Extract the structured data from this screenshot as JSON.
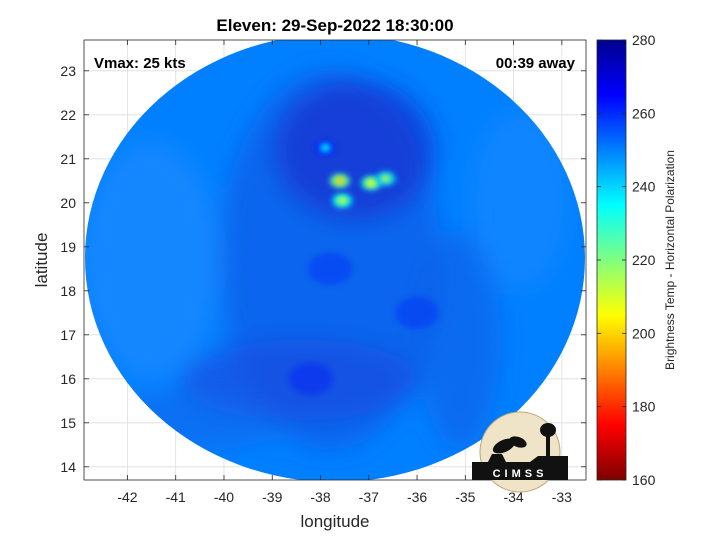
{
  "chart_data": {
    "type": "heatmap",
    "title": "Eleven: 29-Sep-2022 18:30:00",
    "annotations": {
      "vmax": "Vmax: 25 kts",
      "time_away": "00:39 away"
    },
    "xlabel": "longitude",
    "ylabel": "latitude",
    "xlim": [
      -42.9,
      -32.5
    ],
    "ylim": [
      13.7,
      23.7
    ],
    "xticks": [
      -42,
      -41,
      -40,
      -39,
      -38,
      -37,
      -36,
      -35,
      -34,
      -33
    ],
    "yticks": [
      14,
      15,
      16,
      17,
      18,
      19,
      20,
      21,
      22,
      23
    ],
    "grid": true,
    "colorbar": {
      "label": "Brightness Temp - Horizontal Polarization",
      "range": [
        160,
        280
      ],
      "ticks": [
        160,
        180,
        200,
        220,
        240,
        260,
        280
      ],
      "colors": [
        "#7f0000",
        "#ff0000",
        "#ff8000",
        "#ffff00",
        "#80ff80",
        "#00ffff",
        "#0080ff",
        "#0000ff",
        "#00008f"
      ]
    },
    "swath": {
      "center_lon": -37.65,
      "center_lat": 18.7,
      "background_temp": 250
    },
    "features": [
      {
        "lon": -37.6,
        "lat": 20.5,
        "temp": 200
      },
      {
        "lon": -37.55,
        "lat": 20.05,
        "temp": 210
      },
      {
        "lon": -36.95,
        "lat": 20.45,
        "temp": 205
      },
      {
        "lon": -36.65,
        "lat": 20.55,
        "temp": 215
      },
      {
        "lon": -37.9,
        "lat": 21.25,
        "temp": 235
      },
      {
        "lon": -37.8,
        "lat": 18.5,
        "temp": 262
      },
      {
        "lon": -38.2,
        "lat": 16.0,
        "temp": 264
      },
      {
        "lon": -36.0,
        "lat": 17.5,
        "temp": 262
      }
    ]
  },
  "logo": {
    "text": "CIMSS"
  }
}
